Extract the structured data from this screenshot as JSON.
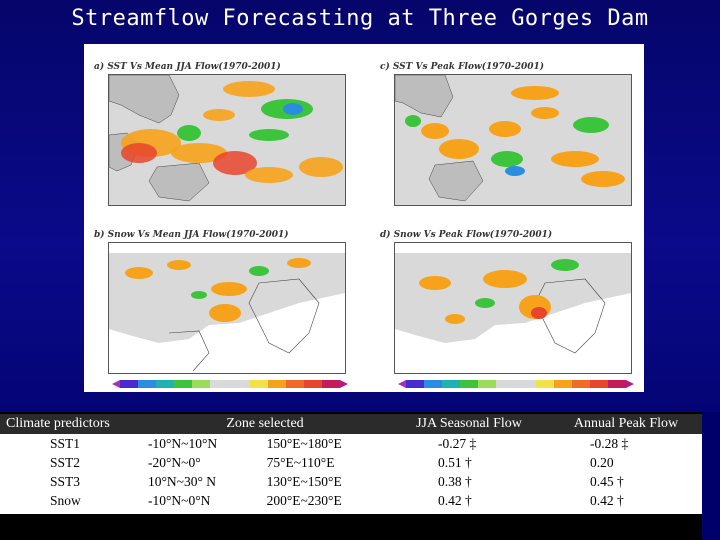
{
  "slide": {
    "title": "Streamflow Forecasting at Three Gorges Dam"
  },
  "panels": [
    {
      "title": "a) SST Vs Mean JJA Flow(1970-2001)"
    },
    {
      "title": "c) SST Vs Peak Flow(1970-2001)"
    },
    {
      "title": "b) Snow Vs Mean JJA Flow(1970-2001)"
    },
    {
      "title": "d) Snow Vs Peak Flow(1970-2001)"
    }
  ],
  "colors": {
    "land_gray": "#d9d9d9",
    "positive": "#f7a21b",
    "strong_positive": "#e8452c",
    "negative": "#3cc43c",
    "strong_negative": "#2a8de0"
  },
  "table": {
    "headers": {
      "predictors": "Climate predictors",
      "zone": "Zone selected",
      "jja": "JJA Seasonal Flow",
      "peak": "Annual Peak Flow"
    },
    "rows": [
      {
        "name": "SST1",
        "lat": "-10°N~10°N",
        "lon": "150°E~180°E",
        "jja": "-0.27 ‡",
        "peak": "-0.28 ‡"
      },
      {
        "name": "SST2",
        "lat": "-20°N~0°",
        "lon": "75°E~110°E",
        "jja": "0.51 †",
        "peak": "0.20"
      },
      {
        "name": "SST3",
        "lat": "10°N~30° N",
        "lon": "130°E~150°E",
        "jja": "0.38 †",
        "peak": "0.45 †"
      },
      {
        "name": "Snow",
        "lat": "-10°N~0°N",
        "lon": "200°E~230°E",
        "jja": "0.42 †",
        "peak": "0.42 †"
      }
    ]
  }
}
